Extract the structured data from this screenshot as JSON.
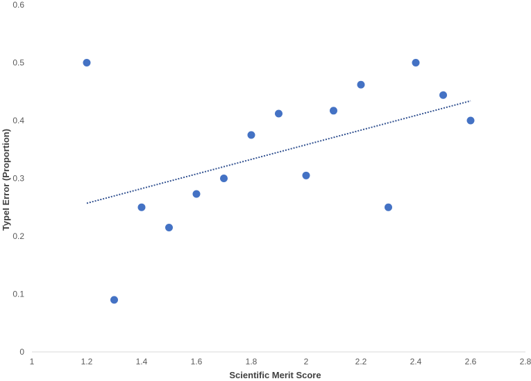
{
  "chart_data": {
    "type": "scatter",
    "title": "",
    "xlabel": "Scientific Merit Score",
    "ylabel": "TypeI Error (Proportion)",
    "xlim": [
      1,
      2.8
    ],
    "ylim": [
      0,
      0.6
    ],
    "x_ticks": [
      "1",
      "1.2",
      "1.4",
      "1.6",
      "1.8",
      "2",
      "2.2",
      "2.4",
      "2.6",
      "2.8"
    ],
    "y_ticks": [
      "0",
      "0.1",
      "0.2",
      "0.3",
      "0.4",
      "0.5",
      "0.6"
    ],
    "grid": false,
    "legend": "none",
    "point_color": "#4472C4",
    "trendline_color": "#2F4F8F",
    "points": [
      {
        "x": 1.2,
        "y": 0.5
      },
      {
        "x": 1.3,
        "y": 0.09
      },
      {
        "x": 1.4,
        "y": 0.25
      },
      {
        "x": 1.5,
        "y": 0.215
      },
      {
        "x": 1.6,
        "y": 0.273
      },
      {
        "x": 1.7,
        "y": 0.3
      },
      {
        "x": 1.8,
        "y": 0.375
      },
      {
        "x": 1.9,
        "y": 0.412
      },
      {
        "x": 2.0,
        "y": 0.305
      },
      {
        "x": 2.1,
        "y": 0.417
      },
      {
        "x": 2.2,
        "y": 0.462
      },
      {
        "x": 2.3,
        "y": 0.25
      },
      {
        "x": 2.4,
        "y": 0.5
      },
      {
        "x": 2.5,
        "y": 0.444
      },
      {
        "x": 2.6,
        "y": 0.4
      }
    ],
    "trendline": {
      "style": "dotted",
      "x_start": 1.2,
      "y_start": 0.257,
      "x_end": 2.6,
      "y_end": 0.434
    }
  }
}
